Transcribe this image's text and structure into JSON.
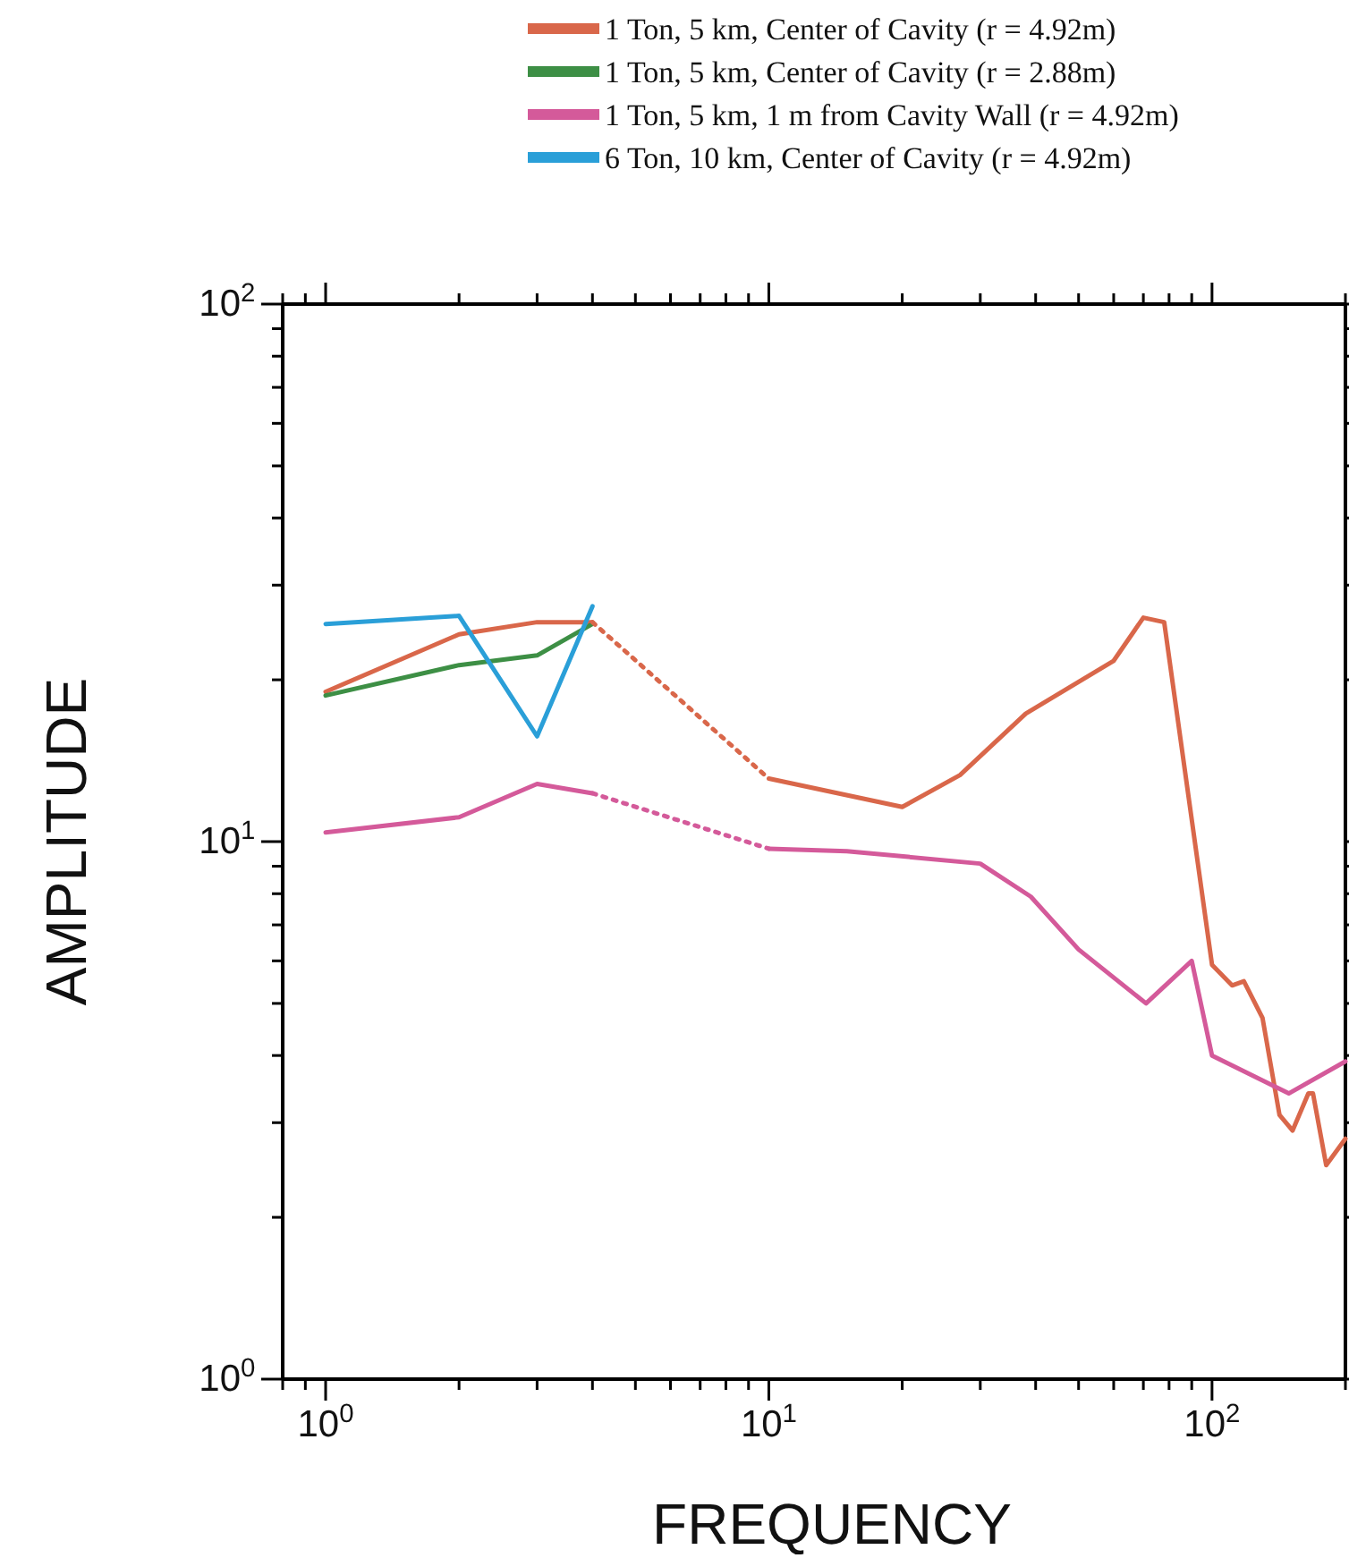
{
  "chart_data": {
    "type": "line",
    "xlabel": "FREQUENCY",
    "ylabel": "AMPLITUDE",
    "log": "xy",
    "legend": "top",
    "xlim": [
      0.8,
      200
    ],
    "ylim": [
      1,
      100
    ],
    "xticks": [
      {
        "value": 0.8,
        "label": null
      },
      {
        "value": 0.9,
        "label": null
      },
      {
        "value": 1,
        "label": "10$^{0}$"
      },
      {
        "value": 2,
        "label": null
      },
      {
        "value": 3,
        "label": null
      },
      {
        "value": 4,
        "label": null
      },
      {
        "value": 5,
        "label": null
      },
      {
        "value": 6,
        "label": null
      },
      {
        "value": 7,
        "label": null
      },
      {
        "value": 8,
        "label": null
      },
      {
        "value": 9,
        "label": null
      },
      {
        "value": 10,
        "label": "10$^{1}$"
      },
      {
        "value": 20,
        "label": null
      },
      {
        "value": 30,
        "label": null
      },
      {
        "value": 40,
        "label": null
      },
      {
        "value": 50,
        "label": null
      },
      {
        "value": 60,
        "label": null
      },
      {
        "value": 70,
        "label": null
      },
      {
        "value": 80,
        "label": null
      },
      {
        "value": 90,
        "label": null
      },
      {
        "value": 100,
        "label": "10$^{2}$"
      },
      {
        "value": 200,
        "label": null
      }
    ],
    "yticks": [
      {
        "value": 1,
        "label": "10$^{0}$"
      },
      {
        "value": 2,
        "label": null
      },
      {
        "value": 3,
        "label": null
      },
      {
        "value": 4,
        "label": null
      },
      {
        "value": 5,
        "label": null
      },
      {
        "value": 6,
        "label": null
      },
      {
        "value": 7,
        "label": null
      },
      {
        "value": 8,
        "label": null
      },
      {
        "value": 9,
        "label": null
      },
      {
        "value": 10,
        "label": "10$^{1}$"
      },
      {
        "value": 20,
        "label": null
      },
      {
        "value": 30,
        "label": null
      },
      {
        "value": 40,
        "label": null
      },
      {
        "value": 50,
        "label": null
      },
      {
        "value": 60,
        "label": null
      },
      {
        "value": 70,
        "label": null
      },
      {
        "value": 80,
        "label": null
      },
      {
        "value": 90,
        "label": null
      },
      {
        "value": 100,
        "label": "10$^{2}$"
      }
    ],
    "series": [
      {
        "name": "1 Ton, 5 km, Center of Cavity (r = 4.92m)",
        "color": "#d9674a",
        "x": [
          1,
          2,
          3,
          4
        ],
        "values": [
          19.0,
          24.3,
          25.6,
          25.6
        ]
      },
      {
        "name": "1 Ton, 5 km, Center of Cavity (r = 2.88m)",
        "color": "#3d8f45",
        "x": [
          1,
          2,
          3,
          4
        ],
        "values": [
          18.7,
          21.3,
          22.2,
          25.4
        ]
      },
      {
        "name": "1 Ton, 5 km, 1 m from Cavity Wall (r = 4.92m)",
        "color": "#d45a9a",
        "x": [
          1,
          2,
          3,
          4
        ],
        "values": [
          10.4,
          11.1,
          12.8,
          12.3
        ]
      },
      {
        "name": "6 Ton, 10 km, Center of Cavity (r = 4.92m)",
        "color": "#2a9fd8",
        "x": [
          1,
          2,
          3,
          4
        ],
        "values": [
          25.4,
          26.3,
          15.7,
          27.4
        ]
      },
      {
        "color": "#d9674a",
        "line_style": "dotted",
        "x": [
          4,
          10
        ],
        "values": [
          25.6,
          13.1
        ]
      },
      {
        "color": "#d9674a",
        "x": [
          10,
          20,
          27,
          38,
          60,
          70,
          78,
          100,
          111,
          118,
          130,
          142,
          152,
          165,
          169,
          181,
          200
        ],
        "values": [
          13.1,
          11.6,
          13.3,
          17.3,
          21.7,
          26.1,
          25.6,
          5.9,
          5.4,
          5.5,
          4.7,
          3.1,
          2.9,
          3.4,
          3.4,
          2.5,
          2.8
        ]
      },
      {
        "color": "#d45a9a",
        "line_style": "dotted",
        "x": [
          4,
          10
        ],
        "values": [
          12.3,
          9.7
        ]
      },
      {
        "color": "#d45a9a",
        "x": [
          10,
          15,
          30,
          39,
          50,
          71,
          90,
          100,
          149,
          200
        ],
        "values": [
          9.7,
          9.6,
          9.1,
          7.9,
          6.3,
          5.0,
          6.0,
          4.0,
          3.4,
          3.9
        ]
      }
    ]
  }
}
